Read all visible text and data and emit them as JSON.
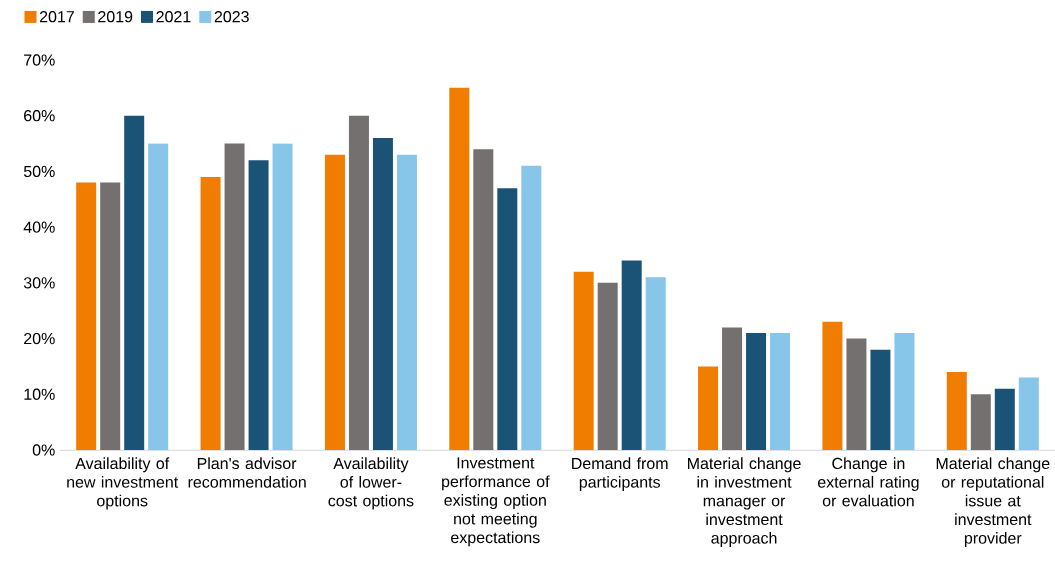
{
  "chart_data": {
    "type": "bar",
    "categories": [
      "Availability of new investment options",
      "Plan's advisor recommendation",
      "Availability of lower-cost options",
      "Investment performance of existing option not meeting expectations",
      "Demand from participants",
      "Material change in investment manager or investment approach",
      "Change in external rating or evaluation",
      "Material change or reputational issue at investment provider"
    ],
    "series": [
      {
        "name": "2017",
        "color": "#f07c00",
        "values": [
          48,
          49,
          53,
          65,
          32,
          15,
          23,
          14
        ]
      },
      {
        "name": "2019",
        "color": "#757070",
        "values": [
          48,
          55,
          60,
          54,
          30,
          22,
          20,
          10
        ]
      },
      {
        "name": "2021",
        "color": "#1b5377",
        "values": [
          60,
          52,
          56,
          47,
          34,
          21,
          18,
          11
        ]
      },
      {
        "name": "2023",
        "color": "#87c6e8",
        "values": [
          55,
          55,
          53,
          51,
          31,
          21,
          21,
          13
        ]
      }
    ],
    "ylim": [
      0,
      70
    ],
    "yticks": [
      {
        "value": 0,
        "label": "0%"
      },
      {
        "value": 10,
        "label": "10%"
      },
      {
        "value": 20,
        "label": "20%"
      },
      {
        "value": 30,
        "label": "30%"
      },
      {
        "value": 40,
        "label": "40%"
      },
      {
        "value": 50,
        "label": "50%"
      },
      {
        "value": 60,
        "label": "60%"
      },
      {
        "value": 70,
        "label": "70%"
      }
    ],
    "legend": "top left"
  }
}
